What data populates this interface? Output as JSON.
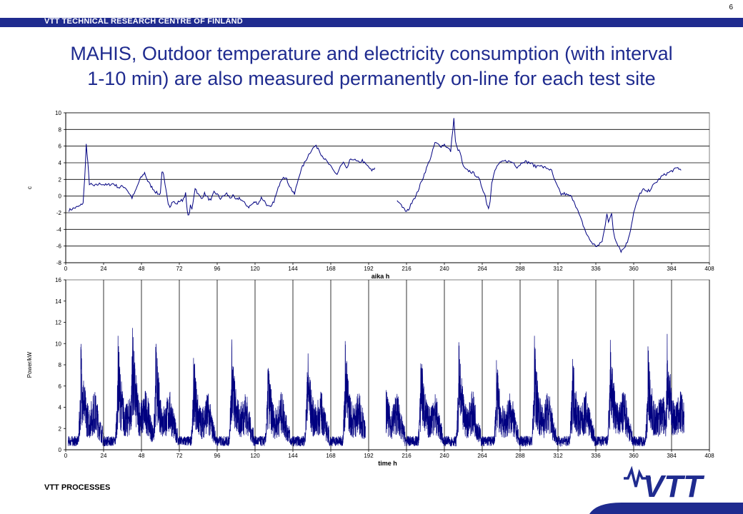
{
  "header": {
    "org": "VTT TECHNICAL RESEARCH CENTRE OF FINLAND",
    "page_number": "6"
  },
  "title": "MAHIS, Outdoor temperature and electricity consumption (with interval\n1-10 min) are also measured permanently on-line for each test site",
  "footer": {
    "label": "VTT PROCESSES"
  },
  "logo": {
    "text": "VTT"
  },
  "colors": {
    "brand": "#1f2b8f",
    "series": "#000080",
    "grid": "#000000"
  },
  "chart_data": [
    {
      "type": "line",
      "title": "",
      "xlabel": "aika h",
      "ylabel": "c",
      "xlim": [
        0,
        408
      ],
      "ylim": [
        -8,
        10
      ],
      "xticks": [
        "0",
        "24",
        "48",
        "72",
        "96",
        "120",
        "144",
        "168",
        "192",
        "216",
        "240",
        "264",
        "288",
        "312",
        "336",
        "360",
        "384",
        "408"
      ],
      "yticks": [
        "-8",
        "-6",
        "-4",
        "-2",
        "0",
        "2",
        "4",
        "6",
        "8",
        "10"
      ],
      "grid": "horizontal",
      "series": [
        {
          "segments": [
            [
              [
                2,
                -1.7
              ],
              [
                6,
                -1.4
              ],
              [
                9,
                -1.2
              ],
              [
                11,
                -0.8
              ],
              [
                12,
                2
              ],
              [
                13,
                6.2
              ],
              [
                14,
                4
              ],
              [
                15,
                1.5
              ],
              [
                18,
                1.2
              ],
              [
                22,
                1.5
              ],
              [
                26,
                1.3
              ],
              [
                30,
                1.5
              ],
              [
                34,
                1.0
              ],
              [
                36,
                1.2
              ],
              [
                38,
                1.0
              ],
              [
                40,
                0.4
              ],
              [
                42,
                -0.2
              ],
              [
                44,
                0.5
              ],
              [
                47,
                2
              ],
              [
                50,
                2.8
              ],
              [
                52,
                1.8
              ],
              [
                54,
                1.2
              ],
              [
                57,
                0.5
              ],
              [
                59,
                0.2
              ],
              [
                60,
                0.4
              ],
              [
                61,
                3.0
              ],
              [
                62,
                2.5
              ],
              [
                63,
                1.2
              ],
              [
                64,
                0.2
              ],
              [
                65,
                -0.8
              ],
              [
                66,
                -1.2
              ],
              [
                68,
                -0.6
              ],
              [
                70,
                -1.0
              ],
              [
                72,
                -0.6
              ],
              [
                74,
                -0.5
              ],
              [
                76,
                0.3
              ],
              [
                77,
                -1.8
              ],
              [
                78,
                -2.4
              ],
              [
                79,
                -1.2
              ],
              [
                80,
                -1.6
              ],
              [
                82,
                1.0
              ],
              [
                84,
                0.2
              ],
              [
                86,
                -0.3
              ],
              [
                88,
                0.3
              ],
              [
                90,
                -0.2
              ],
              [
                92,
                -0.6
              ],
              [
                94,
                0.5
              ],
              [
                96,
                0.2
              ],
              [
                98,
                -0.3
              ],
              [
                100,
                0
              ],
              [
                102,
                0.3
              ],
              [
                104,
                -0.2
              ],
              [
                106,
                0
              ],
              [
                108,
                -0.5
              ],
              [
                110,
                -0.2
              ],
              [
                112,
                -0.6
              ],
              [
                114,
                -1.0
              ],
              [
                116,
                -1.3
              ],
              [
                118,
                -1.0
              ],
              [
                120,
                -0.7
              ],
              [
                122,
                -0.9
              ],
              [
                124,
                -0.2
              ],
              [
                126,
                -0.6
              ],
              [
                128,
                -1.2
              ],
              [
                130,
                -1.4
              ],
              [
                132,
                -0.6
              ],
              [
                134,
                0.5
              ],
              [
                136,
                1.8
              ],
              [
                138,
                2.4
              ],
              [
                140,
                2.0
              ],
              [
                142,
                1.2
              ],
              [
                144,
                0.5
              ],
              [
                145,
                0.2
              ],
              [
                146,
                1
              ],
              [
                148,
                2.5
              ],
              [
                150,
                3.5
              ],
              [
                152,
                4.2
              ],
              [
                154,
                5
              ],
              [
                156,
                5.6
              ],
              [
                158,
                6
              ],
              [
                160,
                5.8
              ],
              [
                162,
                5
              ],
              [
                164,
                4.5
              ],
              [
                166,
                4
              ],
              [
                168,
                3.5
              ],
              [
                170,
                3
              ],
              [
                172,
                2.6
              ],
              [
                174,
                3.5
              ],
              [
                176,
                4
              ],
              [
                178,
                3.2
              ],
              [
                180,
                4.2
              ],
              [
                182,
                4.5
              ],
              [
                184,
                4.2
              ],
              [
                186,
                4.0
              ],
              [
                188,
                4.3
              ],
              [
                190,
                3.8
              ],
              [
                192,
                3.5
              ],
              [
                194,
                3.0
              ],
              [
                196,
                3.4
              ]
            ],
            [
              [
                210,
                -0.6
              ],
              [
                212,
                -0.8
              ],
              [
                214,
                -1.5
              ],
              [
                216,
                -1.9
              ],
              [
                218,
                -1.4
              ],
              [
                220,
                -0.4
              ],
              [
                222,
                0
              ],
              [
                224,
                1.0
              ],
              [
                226,
                2
              ],
              [
                228,
                3
              ],
              [
                230,
                4
              ],
              [
                232,
                5
              ],
              [
                234,
                6.4
              ],
              [
                236,
                6.2
              ],
              [
                238,
                6.0
              ],
              [
                240,
                6.2
              ],
              [
                242,
                5.8
              ],
              [
                244,
                5.4
              ],
              [
                246,
                9.3
              ],
              [
                247,
                6.5
              ],
              [
                248,
                5.8
              ],
              [
                250,
                5.2
              ],
              [
                252,
                3.5
              ],
              [
                254,
                3.1
              ],
              [
                256,
                3.0
              ],
              [
                258,
                2.8
              ],
              [
                260,
                2.5
              ],
              [
                262,
                2.0
              ],
              [
                264,
                1.0
              ],
              [
                266,
                0
              ],
              [
                267,
                -1.0
              ],
              [
                268,
                -1.4
              ],
              [
                269,
                -0.5
              ],
              [
                270,
                1.5
              ],
              [
                272,
                3
              ],
              [
                274,
                3.8
              ],
              [
                276,
                4
              ],
              [
                278,
                4.2
              ],
              [
                280,
                4.2
              ],
              [
                282,
                4.1
              ],
              [
                284,
                4.0
              ],
              [
                286,
                3.5
              ],
              [
                288,
                3.8
              ],
              [
                290,
                4.2
              ],
              [
                292,
                4.1
              ],
              [
                294,
                4.0
              ],
              [
                296,
                3.8
              ],
              [
                298,
                3.5
              ],
              [
                300,
                3.8
              ],
              [
                302,
                3.5
              ],
              [
                304,
                3.4
              ],
              [
                306,
                3.3
              ],
              [
                308,
                3.0
              ],
              [
                310,
                1.8
              ],
              [
                312,
                1.0
              ],
              [
                314,
                0.2
              ],
              [
                316,
                0.3
              ],
              [
                318,
                0.1
              ],
              [
                320,
                0
              ],
              [
                322,
                -0.5
              ],
              [
                324,
                -1.5
              ],
              [
                326,
                -2.5
              ],
              [
                328,
                -3.5
              ],
              [
                330,
                -4.5
              ],
              [
                332,
                -5.2
              ],
              [
                334,
                -5.7
              ],
              [
                336,
                -6
              ],
              [
                338,
                -5.9
              ],
              [
                340,
                -5.4
              ],
              [
                342,
                -3.5
              ],
              [
                343,
                -2.0
              ],
              [
                344,
                -3.0
              ],
              [
                346,
                -2.2
              ],
              [
                347,
                -4.0
              ],
              [
                348,
                -5.0
              ],
              [
                350,
                -5.8
              ],
              [
                352,
                -6.6
              ],
              [
                354,
                -6.2
              ],
              [
                356,
                -5.5
              ],
              [
                358,
                -4.0
              ],
              [
                360,
                -2
              ],
              [
                362,
                -0.8
              ],
              [
                364,
                0.3
              ],
              [
                366,
                0.8
              ],
              [
                368,
                0.5
              ],
              [
                370,
                0.7
              ],
              [
                372,
                1.2
              ],
              [
                374,
                1.6
              ],
              [
                376,
                2
              ],
              [
                378,
                2.4
              ],
              [
                380,
                2.6
              ],
              [
                382,
                2.8
              ],
              [
                384,
                3.0
              ],
              [
                386,
                3.2
              ],
              [
                388,
                3.4
              ],
              [
                390,
                3.1
              ]
            ]
          ]
        }
      ]
    },
    {
      "type": "line",
      "title": "",
      "xlabel": "time h",
      "ylabel": "Power/kW",
      "xlim": [
        0,
        408
      ],
      "ylim": [
        0,
        16
      ],
      "xticks": [
        "0",
        "24",
        "48",
        "72",
        "96",
        "120",
        "144",
        "168",
        "192",
        "216",
        "240",
        "264",
        "288",
        "312",
        "336",
        "360",
        "384",
        "408"
      ],
      "yticks": [
        "0",
        "2",
        "4",
        "6",
        "8",
        "10",
        "12",
        "14",
        "16"
      ],
      "grid": "vertical",
      "daily_peaks": [
        {
          "t": 9.5,
          "peak": 11.2
        },
        {
          "t": 33,
          "peak": 11.5
        },
        {
          "t": 42,
          "peak": 13.6
        },
        {
          "t": 57,
          "peak": 11.2
        },
        {
          "t": 81,
          "peak": 9.8
        },
        {
          "t": 105,
          "peak": 11.5
        },
        {
          "t": 128,
          "peak": 9.5
        },
        {
          "t": 153,
          "peak": 11.0
        },
        {
          "t": 177,
          "peak": 11.3
        },
        {
          "t": 201,
          "peak": 9.8
        },
        {
          "t": 225,
          "peak": 10.5
        },
        {
          "t": 249,
          "peak": 10.8
        },
        {
          "t": 273,
          "peak": 9.2
        },
        {
          "t": 297,
          "peak": 11.2
        },
        {
          "t": 321,
          "peak": 10.5
        },
        {
          "t": 345,
          "peak": 11.5
        },
        {
          "t": 369,
          "peak": 10.7
        },
        {
          "t": 381,
          "peak": 12.2
        }
      ],
      "gap": [
        190,
        203
      ],
      "range": [
        0,
        392
      ]
    }
  ]
}
